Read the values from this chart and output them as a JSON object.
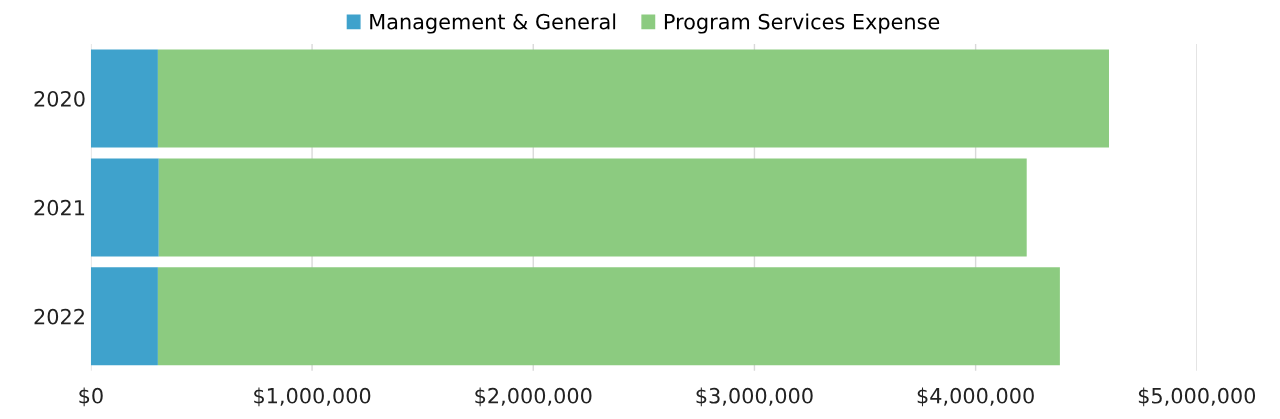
{
  "chart_data": {
    "type": "bar",
    "orientation": "horizontal",
    "stacked": true,
    "categories": [
      "2020",
      "2021",
      "2022"
    ],
    "series": [
      {
        "name": "Management & General",
        "color": "#3fa2cc",
        "values": [
          303000,
          307000,
          303000
        ]
      },
      {
        "name": "Program Services Expense",
        "color": "#8ccb80",
        "values": [
          4300000,
          3924000,
          4078000
        ]
      }
    ],
    "xlim": [
      0,
      5000000
    ],
    "xticks": [
      {
        "value": 0,
        "label": "$0"
      },
      {
        "value": 1000000,
        "label": "$1,000,000"
      },
      {
        "value": 2000000,
        "label": "$2,000,000"
      },
      {
        "value": 3000000,
        "label": "$3,000,000"
      },
      {
        "value": 4000000,
        "label": "$4,000,000"
      },
      {
        "value": 5000000,
        "label": "$5,000,000"
      }
    ],
    "grid": "x",
    "legend": "top"
  }
}
